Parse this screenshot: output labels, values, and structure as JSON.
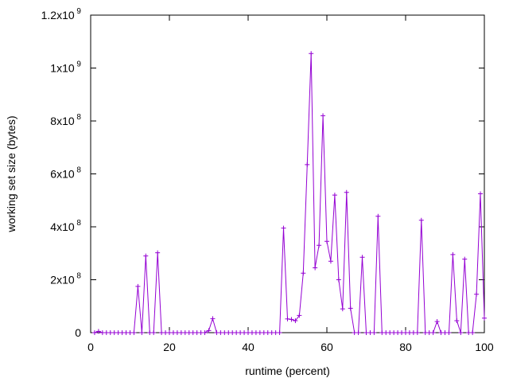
{
  "chart_data": {
    "type": "line",
    "title": "",
    "xlabel": "runtime (percent)",
    "ylabel": "working set size (bytes)",
    "xlim": [
      0,
      100
    ],
    "ylim": [
      0,
      1200000000
    ],
    "grid": false,
    "legend": "none",
    "series_color": "#9400d3",
    "marker": "plus",
    "xticks": [
      {
        "value": 0,
        "label": "0"
      },
      {
        "value": 20,
        "label": "20"
      },
      {
        "value": 40,
        "label": "40"
      },
      {
        "value": 60,
        "label": "60"
      },
      {
        "value": 80,
        "label": "80"
      },
      {
        "value": 100,
        "label": "100"
      }
    ],
    "yticks": [
      {
        "value": 0,
        "base": "0",
        "exp": ""
      },
      {
        "value": 200000000,
        "base": "2x10",
        "exp": "8"
      },
      {
        "value": 400000000,
        "base": "4x10",
        "exp": "8"
      },
      {
        "value": 600000000,
        "base": "6x10",
        "exp": "8"
      },
      {
        "value": 800000000,
        "base": "8x10",
        "exp": "8"
      },
      {
        "value": 1000000000,
        "base": "1x10",
        "exp": "9"
      },
      {
        "value": 1200000000,
        "base": "1.2x10",
        "exp": "9"
      }
    ],
    "x": [
      1,
      2,
      3,
      4,
      5,
      6,
      7,
      8,
      9,
      10,
      11,
      12,
      13,
      14,
      15,
      16,
      17,
      18,
      19,
      20,
      21,
      22,
      23,
      24,
      25,
      26,
      27,
      28,
      29,
      30,
      31,
      32,
      33,
      34,
      35,
      36,
      37,
      38,
      39,
      40,
      41,
      42,
      43,
      44,
      45,
      46,
      47,
      48,
      49,
      50,
      51,
      52,
      53,
      54,
      55,
      56,
      57,
      58,
      59,
      60,
      61,
      62,
      63,
      64,
      65,
      66,
      67,
      68,
      69,
      70,
      71,
      72,
      73,
      74,
      75,
      76,
      77,
      78,
      79,
      80,
      81,
      82,
      83,
      84,
      85,
      86,
      87,
      88,
      89,
      90,
      91,
      92,
      93,
      94,
      95,
      96,
      97,
      98,
      99,
      100
    ],
    "y": [
      0,
      5000000,
      0,
      0,
      0,
      0,
      0,
      0,
      0,
      0,
      0,
      175000000,
      0,
      290000000,
      0,
      0,
      302000000,
      0,
      0,
      0,
      0,
      0,
      0,
      0,
      0,
      0,
      0,
      0,
      0,
      8000000,
      53000000,
      0,
      0,
      0,
      0,
      0,
      0,
      0,
      0,
      0,
      0,
      0,
      0,
      0,
      0,
      0,
      0,
      0,
      395000000,
      52000000,
      50000000,
      45000000,
      65000000,
      225000000,
      635000000,
      1055000000,
      245000000,
      330000000,
      820000000,
      345000000,
      270000000,
      520000000,
      200000000,
      90000000,
      530000000,
      92000000,
      0,
      0,
      285000000,
      0,
      0,
      0,
      440000000,
      0,
      0,
      0,
      0,
      0,
      0,
      0,
      0,
      0,
      0,
      425000000,
      0,
      0,
      0,
      42000000,
      0,
      0,
      0,
      295000000,
      45000000,
      0,
      278000000,
      0,
      0,
      145000000,
      525000000,
      55000000
    ]
  }
}
